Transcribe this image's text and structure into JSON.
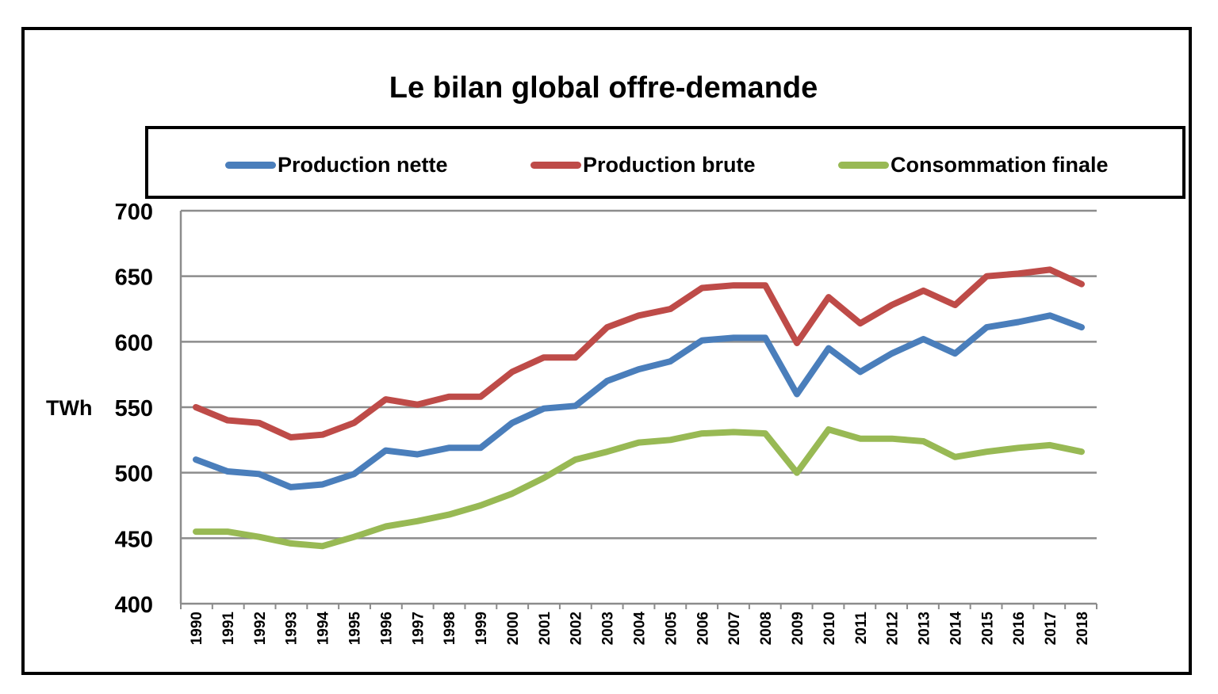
{
  "chart_data": {
    "type": "line",
    "title": "Le bilan global offre-demande",
    "ylabel": "TWh",
    "xlabel": "",
    "ylim": [
      400,
      700
    ],
    "yticks": [
      400,
      450,
      500,
      550,
      600,
      650,
      700
    ],
    "grid": true,
    "legend_position": "top",
    "categories": [
      "1990",
      "1991",
      "1992",
      "1993",
      "1994",
      "1995",
      "1996",
      "1997",
      "1998",
      "1999",
      "2000",
      "2001",
      "2002",
      "2003",
      "2004",
      "2005",
      "2006",
      "2007",
      "2008",
      "2009",
      "2010",
      "2011",
      "2012",
      "2013",
      "2014",
      "2015",
      "2016",
      "2017",
      "2018"
    ],
    "series": [
      {
        "name": "Production nette",
        "color": "#4a7ebb",
        "values": [
          510,
          501,
          499,
          489,
          491,
          499,
          517,
          514,
          519,
          519,
          538,
          549,
          551,
          570,
          579,
          585,
          601,
          603,
          603,
          560,
          595,
          577,
          591,
          602,
          591,
          611,
          615,
          620,
          611
        ]
      },
      {
        "name": "Production brute",
        "color": "#be4b48",
        "values": [
          550,
          540,
          538,
          527,
          529,
          538,
          556,
          552,
          558,
          558,
          577,
          588,
          588,
          611,
          620,
          625,
          641,
          643,
          643,
          599,
          634,
          614,
          628,
          639,
          628,
          650,
          652,
          655,
          644
        ]
      },
      {
        "name": "Consommation finale",
        "color": "#98b954",
        "values": [
          455,
          455,
          451,
          446,
          444,
          451,
          459,
          463,
          468,
          475,
          484,
          496,
          510,
          516,
          523,
          525,
          530,
          531,
          530,
          500,
          533,
          526,
          526,
          524,
          512,
          516,
          519,
          521,
          516
        ]
      }
    ]
  }
}
